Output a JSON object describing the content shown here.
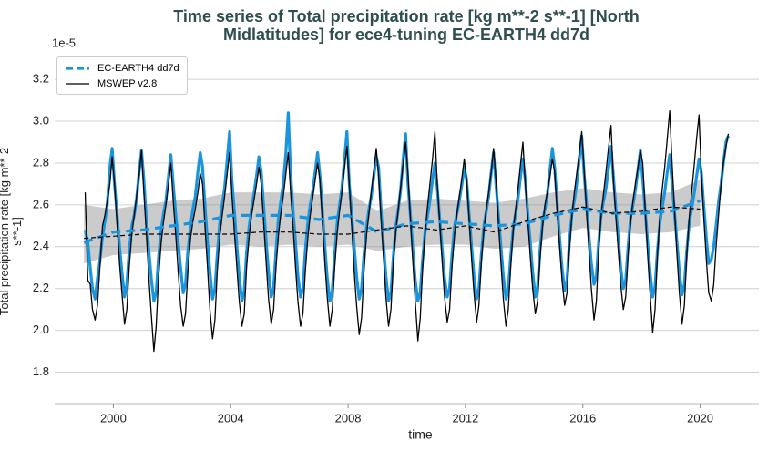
{
  "chart_data": {
    "type": "line",
    "title": "Time series of Total precipitation rate [kg m**-2 s**-1] [North Midlatitudes] for ece4-tuning EC-EARTH4 dd7d",
    "x_label": "time",
    "y_label": "Total precipitation rate [kg m**-2 s**-1]",
    "y_offset_label": "1e-5",
    "xlim": [
      1998.0,
      2022.0
    ],
    "xticks": [
      2000,
      2004,
      2008,
      2012,
      2016,
      2020
    ],
    "ylim": [
      1.65,
      3.34
    ],
    "yticks": [
      1.8,
      {
        "value": 2,
        "label": "2.0"
      },
      2.2,
      2.4,
      2.6,
      2.8,
      {
        "value": 3,
        "label": "3.0"
      },
      3.2
    ],
    "grid": true,
    "legend": "upper-left",
    "x": [
      1999.04,
      1999.13,
      1999.21,
      1999.29,
      1999.38,
      1999.46,
      1999.54,
      1999.63,
      1999.71,
      1999.79,
      1999.88,
      1999.96,
      2000.04,
      2000.13,
      2000.21,
      2000.29,
      2000.38,
      2000.46,
      2000.54,
      2000.63,
      2000.71,
      2000.79,
      2000.88,
      2000.96,
      2001.04,
      2001.13,
      2001.21,
      2001.29,
      2001.38,
      2001.46,
      2001.54,
      2001.63,
      2001.71,
      2001.79,
      2001.88,
      2001.96,
      2002.04,
      2002.13,
      2002.21,
      2002.29,
      2002.38,
      2002.46,
      2002.54,
      2002.63,
      2002.71,
      2002.79,
      2002.88,
      2002.96,
      2003.04,
      2003.13,
      2003.21,
      2003.29,
      2003.38,
      2003.46,
      2003.54,
      2003.63,
      2003.71,
      2003.79,
      2003.88,
      2003.96,
      2004.04,
      2004.13,
      2004.21,
      2004.29,
      2004.38,
      2004.46,
      2004.54,
      2004.63,
      2004.71,
      2004.79,
      2004.88,
      2004.96,
      2005.04,
      2005.13,
      2005.21,
      2005.29,
      2005.38,
      2005.46,
      2005.54,
      2005.63,
      2005.71,
      2005.79,
      2005.88,
      2005.96,
      2006.04,
      2006.13,
      2006.21,
      2006.29,
      2006.38,
      2006.46,
      2006.54,
      2006.63,
      2006.71,
      2006.79,
      2006.88,
      2006.96,
      2007.04,
      2007.13,
      2007.21,
      2007.29,
      2007.38,
      2007.46,
      2007.54,
      2007.63,
      2007.71,
      2007.79,
      2007.88,
      2007.96,
      2008.04,
      2008.13,
      2008.21,
      2008.29,
      2008.38,
      2008.46,
      2008.54,
      2008.63,
      2008.71,
      2008.79,
      2008.88,
      2008.96,
      2009.04,
      2009.13,
      2009.21,
      2009.29,
      2009.38,
      2009.46,
      2009.54,
      2009.63,
      2009.71,
      2009.79,
      2009.88,
      2009.96,
      2010.04,
      2010.13,
      2010.21,
      2010.29,
      2010.38,
      2010.46,
      2010.54,
      2010.63,
      2010.71,
      2010.79,
      2010.88,
      2010.96,
      2011.04,
      2011.13,
      2011.21,
      2011.29,
      2011.38,
      2011.46,
      2011.54,
      2011.63,
      2011.71,
      2011.79,
      2011.88,
      2011.96,
      2012.04,
      2012.13,
      2012.21,
      2012.29,
      2012.38,
      2012.46,
      2012.54,
      2012.63,
      2012.71,
      2012.79,
      2012.88,
      2012.96,
      2013.04,
      2013.13,
      2013.21,
      2013.29,
      2013.38,
      2013.46,
      2013.54,
      2013.63,
      2013.71,
      2013.79,
      2013.88,
      2013.96,
      2014.04,
      2014.13,
      2014.21,
      2014.29,
      2014.38,
      2014.46,
      2014.54,
      2014.63,
      2014.71,
      2014.79,
      2014.88,
      2014.96,
      2015.04,
      2015.13,
      2015.21,
      2015.29,
      2015.38,
      2015.46,
      2015.54,
      2015.63,
      2015.71,
      2015.79,
      2015.88,
      2015.96,
      2016.04,
      2016.13,
      2016.21,
      2016.29,
      2016.38,
      2016.46,
      2016.54,
      2016.63,
      2016.71,
      2016.79,
      2016.88,
      2016.96,
      2017.04,
      2017.13,
      2017.21,
      2017.29,
      2017.38,
      2017.46,
      2017.54,
      2017.63,
      2017.71,
      2017.79,
      2017.88,
      2017.96,
      2018.04,
      2018.13,
      2018.21,
      2018.29,
      2018.38,
      2018.46,
      2018.54,
      2018.63,
      2018.71,
      2018.79,
      2018.88,
      2018.96,
      2019.04,
      2019.13,
      2019.21,
      2019.29,
      2019.38,
      2019.46,
      2019.54,
      2019.63,
      2019.71,
      2019.79,
      2019.88,
      2019.96,
      2020.04,
      2020.13,
      2020.21,
      2020.29,
      2020.38,
      2020.46,
      2020.54,
      2020.63,
      2020.71,
      2020.79,
      2020.88,
      2020.96
    ],
    "annual_x": [
      1999,
      2000,
      2001,
      2002,
      2003,
      2004,
      2005,
      2006,
      2007,
      2008,
      2009,
      2010,
      2011,
      2012,
      2013,
      2014,
      2015,
      2016,
      2017,
      2018,
      2019,
      2020
    ],
    "series": [
      {
        "name": "EC-EARTH4 dd7d",
        "color": "#1a94dc",
        "legend_style": "dashed",
        "values": [
          2.48,
          2.42,
          2.3,
          2.2,
          2.15,
          2.25,
          2.33,
          2.45,
          2.52,
          2.6,
          2.78,
          2.87,
          2.7,
          2.55,
          2.4,
          2.28,
          2.16,
          2.22,
          2.38,
          2.5,
          2.55,
          2.63,
          2.76,
          2.86,
          2.72,
          2.52,
          2.38,
          2.25,
          2.14,
          2.18,
          2.35,
          2.48,
          2.56,
          2.62,
          2.74,
          2.84,
          2.7,
          2.55,
          2.42,
          2.3,
          2.18,
          2.22,
          2.38,
          2.5,
          2.58,
          2.64,
          2.76,
          2.85,
          2.78,
          2.58,
          2.42,
          2.28,
          2.15,
          2.2,
          2.36,
          2.52,
          2.6,
          2.68,
          2.82,
          2.95,
          2.72,
          2.56,
          2.4,
          2.26,
          2.14,
          2.19,
          2.37,
          2.5,
          2.58,
          2.65,
          2.74,
          2.83,
          2.76,
          2.58,
          2.42,
          2.28,
          2.16,
          2.2,
          2.38,
          2.54,
          2.62,
          2.7,
          2.85,
          3.04,
          2.75,
          2.56,
          2.42,
          2.26,
          2.16,
          2.2,
          2.38,
          2.52,
          2.6,
          2.66,
          2.76,
          2.85,
          2.74,
          2.56,
          2.4,
          2.25,
          2.14,
          2.19,
          2.36,
          2.52,
          2.6,
          2.68,
          2.82,
          2.95,
          2.7,
          2.54,
          2.4,
          2.26,
          2.15,
          2.2,
          2.36,
          2.5,
          2.58,
          2.64,
          2.74,
          2.83,
          2.78,
          2.56,
          2.4,
          2.26,
          2.14,
          2.18,
          2.35,
          2.5,
          2.58,
          2.67,
          2.82,
          2.94,
          2.7,
          2.54,
          2.38,
          2.24,
          2.14,
          2.18,
          2.34,
          2.48,
          2.55,
          2.62,
          2.72,
          2.8,
          2.68,
          2.52,
          2.38,
          2.25,
          2.16,
          2.2,
          2.36,
          2.5,
          2.56,
          2.62,
          2.7,
          2.78,
          2.72,
          2.55,
          2.4,
          2.26,
          2.15,
          2.2,
          2.36,
          2.5,
          2.57,
          2.64,
          2.76,
          2.85,
          2.7,
          2.54,
          2.4,
          2.26,
          2.15,
          2.19,
          2.35,
          2.49,
          2.56,
          2.63,
          2.74,
          2.82,
          2.72,
          2.55,
          2.42,
          2.28,
          2.16,
          2.21,
          2.38,
          2.52,
          2.58,
          2.65,
          2.77,
          2.87,
          2.78,
          2.6,
          2.44,
          2.3,
          2.19,
          2.24,
          2.42,
          2.56,
          2.62,
          2.7,
          2.82,
          2.93,
          2.76,
          2.6,
          2.45,
          2.32,
          2.22,
          2.26,
          2.42,
          2.56,
          2.62,
          2.68,
          2.78,
          2.88,
          2.74,
          2.58,
          2.44,
          2.3,
          2.2,
          2.24,
          2.4,
          2.54,
          2.6,
          2.67,
          2.77,
          2.86,
          2.72,
          2.56,
          2.42,
          2.28,
          2.16,
          2.21,
          2.38,
          2.52,
          2.59,
          2.66,
          2.76,
          2.84,
          2.7,
          2.55,
          2.42,
          2.28,
          2.17,
          2.22,
          2.38,
          2.52,
          2.58,
          2.65,
          2.74,
          2.82,
          2.75,
          2.58,
          2.44,
          2.32,
          2.34,
          2.4,
          2.5,
          2.62,
          2.7,
          2.8,
          2.9,
          2.93
        ],
        "mean": [
          2.42,
          2.47,
          2.48,
          2.5,
          2.52,
          2.55,
          2.55,
          2.55,
          2.53,
          2.55,
          2.47,
          2.51,
          2.52,
          2.51,
          2.5,
          2.51,
          2.55,
          2.58,
          2.56,
          2.56,
          2.57,
          2.62
        ],
        "mean_lower": [
          2.32,
          2.36,
          2.37,
          2.38,
          2.39,
          2.41,
          2.4,
          2.41,
          2.4,
          2.41,
          2.38,
          2.4,
          2.41,
          2.41,
          2.39,
          2.4,
          2.45,
          2.49,
          2.47,
          2.46,
          2.47,
          2.5
        ],
        "mean_upper": [
          2.6,
          2.58,
          2.6,
          2.62,
          2.63,
          2.66,
          2.66,
          2.66,
          2.65,
          2.66,
          2.57,
          2.62,
          2.63,
          2.62,
          2.61,
          2.63,
          2.66,
          2.68,
          2.66,
          2.65,
          2.66,
          2.72
        ]
      },
      {
        "name": "MSWEP v2.8",
        "color": "#000000",
        "legend_style": "solid",
        "values": [
          2.66,
          2.24,
          2.22,
          2.1,
          2.05,
          2.12,
          2.3,
          2.5,
          2.55,
          2.62,
          2.7,
          2.83,
          2.7,
          2.5,
          2.32,
          2.18,
          2.03,
          2.1,
          2.3,
          2.46,
          2.55,
          2.64,
          2.75,
          2.86,
          2.66,
          2.45,
          2.25,
          2.08,
          1.9,
          2.02,
          2.25,
          2.42,
          2.52,
          2.6,
          2.7,
          2.8,
          2.62,
          2.45,
          2.28,
          2.12,
          2.02,
          2.08,
          2.28,
          2.44,
          2.52,
          2.58,
          2.66,
          2.75,
          2.7,
          2.48,
          2.3,
          2.1,
          1.96,
          2.05,
          2.28,
          2.45,
          2.55,
          2.64,
          2.75,
          2.85,
          2.65,
          2.46,
          2.3,
          2.14,
          2.02,
          2.08,
          2.3,
          2.45,
          2.55,
          2.62,
          2.7,
          2.78,
          2.7,
          2.5,
          2.32,
          2.15,
          2.03,
          2.1,
          2.3,
          2.46,
          2.56,
          2.64,
          2.75,
          2.85,
          2.66,
          2.48,
          2.3,
          2.14,
          2.02,
          2.08,
          2.28,
          2.45,
          2.55,
          2.63,
          2.72,
          2.8,
          2.72,
          2.5,
          2.32,
          2.16,
          2.02,
          2.1,
          2.3,
          2.47,
          2.57,
          2.66,
          2.78,
          2.88,
          2.7,
          2.48,
          2.28,
          2.12,
          1.98,
          2.06,
          2.28,
          2.46,
          2.56,
          2.66,
          2.77,
          2.87,
          2.74,
          2.52,
          2.34,
          2.16,
          2.02,
          2.1,
          2.32,
          2.48,
          2.58,
          2.68,
          2.8,
          2.9,
          2.75,
          2.52,
          2.32,
          2.14,
          1.95,
          2.06,
          2.3,
          2.48,
          2.6,
          2.7,
          2.82,
          2.95,
          2.7,
          2.5,
          2.32,
          2.16,
          2.04,
          2.1,
          2.3,
          2.46,
          2.56,
          2.64,
          2.73,
          2.82,
          2.72,
          2.52,
          2.34,
          2.18,
          2.04,
          2.12,
          2.32,
          2.48,
          2.58,
          2.66,
          2.76,
          2.87,
          2.72,
          2.5,
          2.32,
          2.15,
          2.02,
          2.1,
          2.3,
          2.48,
          2.58,
          2.68,
          2.8,
          2.9,
          2.7,
          2.52,
          2.35,
          2.2,
          2.08,
          2.14,
          2.34,
          2.5,
          2.6,
          2.66,
          2.74,
          2.82,
          2.76,
          2.56,
          2.4,
          2.24,
          2.12,
          2.18,
          2.38,
          2.55,
          2.66,
          2.75,
          2.85,
          2.95,
          2.78,
          2.56,
          2.38,
          2.2,
          2.05,
          2.14,
          2.38,
          2.56,
          2.66,
          2.76,
          2.88,
          2.98,
          2.72,
          2.54,
          2.38,
          2.22,
          2.1,
          2.16,
          2.36,
          2.52,
          2.62,
          2.7,
          2.78,
          2.86,
          2.8,
          2.56,
          2.36,
          2.18,
          1.99,
          2.1,
          2.36,
          2.56,
          2.68,
          2.78,
          2.92,
          3.05,
          2.8,
          2.56,
          2.36,
          2.18,
          2.03,
          2.12,
          2.36,
          2.55,
          2.66,
          2.78,
          2.92,
          3.03,
          2.74,
          2.52,
          2.34,
          2.18,
          2.14,
          2.22,
          2.4,
          2.56,
          2.7,
          2.8,
          2.88,
          2.94
        ],
        "mean": [
          2.44,
          2.45,
          2.46,
          2.46,
          2.46,
          2.46,
          2.47,
          2.47,
          2.46,
          2.46,
          2.48,
          2.5,
          2.48,
          2.5,
          2.47,
          2.52,
          2.56,
          2.59,
          2.56,
          2.57,
          2.59,
          2.58
        ]
      }
    ]
  }
}
